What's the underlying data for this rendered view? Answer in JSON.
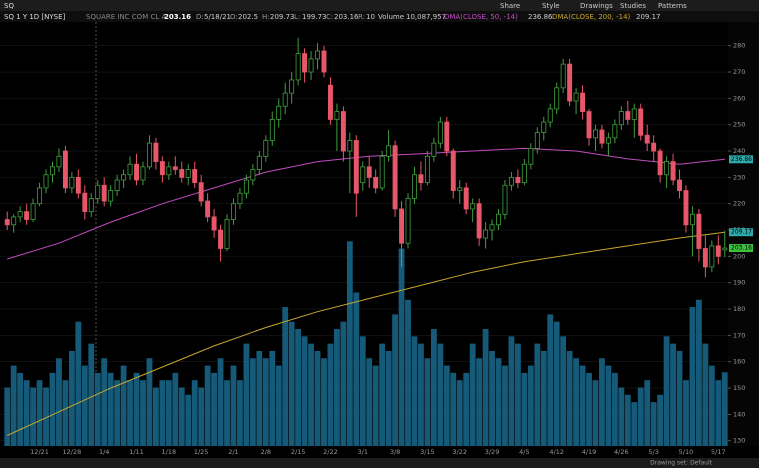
{
  "toolbar": {
    "symbol": "SQ",
    "buttons": [
      "Share",
      "Style",
      "Drawings",
      "Studies",
      "Patterns"
    ]
  },
  "header": {
    "title": "SQ 1 Y 1D [NYSE]",
    "company": "SQUARE INC COM CL A",
    "date_label": "D:",
    "date": "5/18/21",
    "ohlc_labels": [
      "O:",
      "H:",
      "L:",
      "C:"
    ],
    "range_label": "R:",
    "range": 10,
    "volume_title": "Volume",
    "volume_text": "10,087,957"
  },
  "footer": {
    "drawing_set": "Drawing set: Default"
  },
  "chart_data": {
    "type": "candlestick",
    "categories": [
      null,
      null,
      null,
      null,
      null,
      "12/21",
      null,
      null,
      null,
      null,
      "12/28",
      null,
      null,
      null,
      null,
      "1/4",
      null,
      null,
      null,
      null,
      "1/11",
      null,
      null,
      null,
      null,
      "1/18",
      null,
      null,
      null,
      null,
      "1/25",
      null,
      null,
      null,
      null,
      "2/1",
      null,
      null,
      null,
      null,
      "2/8",
      null,
      null,
      null,
      null,
      "2/15",
      null,
      null,
      null,
      null,
      "2/22",
      null,
      null,
      null,
      null,
      "3/1",
      null,
      null,
      null,
      null,
      "3/8",
      null,
      null,
      null,
      null,
      "3/15",
      null,
      null,
      null,
      null,
      "3/22",
      null,
      null,
      null,
      null,
      "3/29",
      null,
      null,
      null,
      null,
      "4/5",
      null,
      null,
      null,
      null,
      "4/12",
      null,
      null,
      null,
      null,
      "4/19",
      null,
      null,
      null,
      null,
      "4/26",
      null,
      null,
      null,
      null,
      "5/3",
      null,
      null,
      null,
      null,
      "5/10",
      null,
      null,
      null,
      null,
      "5/17",
      null
    ],
    "ohlc": [
      [
        214,
        217,
        210,
        212
      ],
      [
        212,
        216,
        209,
        215
      ],
      [
        215,
        219,
        213,
        217
      ],
      [
        217,
        220,
        212,
        214
      ],
      [
        214,
        222,
        213,
        220
      ],
      [
        220,
        228,
        219,
        226
      ],
      [
        226,
        233,
        224,
        231
      ],
      [
        231,
        236,
        228,
        234
      ],
      [
        234,
        241,
        232,
        238
      ],
      [
        240,
        242,
        224,
        226
      ],
      [
        226,
        232,
        224,
        230
      ],
      [
        230,
        233,
        222,
        224
      ],
      [
        224,
        227,
        214,
        217
      ],
      [
        217,
        224,
        215,
        222
      ],
      [
        222,
        229,
        220,
        227
      ],
      [
        227,
        230,
        219,
        221
      ],
      [
        221,
        227,
        219,
        225
      ],
      [
        225,
        231,
        223,
        229
      ],
      [
        229,
        233,
        226,
        231
      ],
      [
        231,
        238,
        229,
        235
      ],
      [
        235,
        239,
        227,
        229
      ],
      [
        229,
        236,
        227,
        234
      ],
      [
        234,
        246,
        233,
        243
      ],
      [
        243,
        245,
        233,
        236
      ],
      [
        236,
        238,
        228,
        231
      ],
      [
        231,
        236,
        229,
        234
      ],
      [
        234,
        238,
        231,
        233
      ],
      [
        233,
        236,
        228,
        230
      ],
      [
        230,
        235,
        227,
        233
      ],
      [
        233,
        236,
        226,
        228
      ],
      [
        228,
        231,
        219,
        221
      ],
      [
        221,
        224,
        213,
        215
      ],
      [
        215,
        218,
        207,
        210
      ],
      [
        210,
        212,
        198,
        203
      ],
      [
        203,
        216,
        202,
        214
      ],
      [
        214,
        222,
        212,
        220
      ],
      [
        220,
        226,
        218,
        224
      ],
      [
        224,
        231,
        222,
        229
      ],
      [
        229,
        235,
        227,
        233
      ],
      [
        233,
        240,
        231,
        238
      ],
      [
        238,
        246,
        236,
        244
      ],
      [
        244,
        255,
        242,
        252
      ],
      [
        252,
        260,
        249,
        257
      ],
      [
        257,
        266,
        254,
        262
      ],
      [
        262,
        270,
        258,
        267
      ],
      [
        267,
        283,
        265,
        277
      ],
      [
        277,
        279,
        266,
        270
      ],
      [
        270,
        278,
        267,
        275
      ],
      [
        275,
        281,
        271,
        278
      ],
      [
        278,
        280,
        268,
        270
      ],
      [
        265,
        268,
        250,
        252
      ],
      [
        252,
        258,
        240,
        255
      ],
      [
        255,
        257,
        236,
        240
      ],
      [
        240,
        247,
        224,
        244
      ],
      [
        244,
        246,
        215,
        224
      ],
      [
        228,
        236,
        225,
        234
      ],
      [
        234,
        238,
        226,
        230
      ],
      [
        230,
        233,
        224,
        226
      ],
      [
        226,
        240,
        225,
        238
      ],
      [
        238,
        248,
        236,
        242
      ],
      [
        242,
        244,
        215,
        218
      ],
      [
        218,
        221,
        196,
        205
      ],
      [
        205,
        224,
        203,
        222
      ],
      [
        222,
        234,
        220,
        231
      ],
      [
        231,
        236,
        225,
        228
      ],
      [
        228,
        240,
        227,
        238
      ],
      [
        238,
        245,
        236,
        243
      ],
      [
        243,
        253,
        241,
        251
      ],
      [
        251,
        253,
        238,
        240
      ],
      [
        240,
        241,
        222,
        225
      ],
      [
        225,
        229,
        220,
        226
      ],
      [
        226,
        228,
        216,
        218
      ],
      [
        218,
        222,
        213,
        220
      ],
      [
        220,
        222,
        204,
        207
      ],
      [
        207,
        213,
        203,
        210
      ],
      [
        210,
        214,
        206,
        212
      ],
      [
        212,
        218,
        210,
        216
      ],
      [
        216,
        229,
        214,
        227
      ],
      [
        227,
        232,
        225,
        230
      ],
      [
        230,
        233,
        226,
        228
      ],
      [
        228,
        237,
        227,
        235
      ],
      [
        235,
        243,
        233,
        241
      ],
      [
        241,
        249,
        239,
        247
      ],
      [
        247,
        253,
        244,
        251
      ],
      [
        251,
        258,
        249,
        256
      ],
      [
        256,
        266,
        254,
        264
      ],
      [
        264,
        275,
        262,
        273
      ],
      [
        273,
        275,
        257,
        259
      ],
      [
        259,
        264,
        254,
        262
      ],
      [
        262,
        265,
        252,
        255
      ],
      [
        255,
        256,
        242,
        245
      ],
      [
        245,
        250,
        240,
        248
      ],
      [
        248,
        250,
        241,
        243
      ],
      [
        243,
        247,
        238,
        245
      ],
      [
        245,
        252,
        243,
        250
      ],
      [
        250,
        257,
        248,
        255
      ],
      [
        255,
        259,
        250,
        252
      ],
      [
        252,
        258,
        245,
        256
      ],
      [
        256,
        258,
        244,
        246
      ],
      [
        246,
        250,
        240,
        243
      ],
      [
        243,
        246,
        236,
        240
      ],
      [
        240,
        241,
        228,
        231
      ],
      [
        231,
        238,
        226,
        236
      ],
      [
        236,
        239,
        227,
        229
      ],
      [
        229,
        233,
        222,
        225
      ],
      [
        225,
        227,
        209,
        212
      ],
      [
        212,
        219,
        200,
        216
      ],
      [
        216,
        218,
        198,
        203
      ],
      [
        203,
        208,
        192,
        196
      ],
      [
        196,
        206,
        194,
        204
      ],
      [
        204,
        208,
        197,
        200
      ],
      [
        202.5,
        209.73,
        199.73,
        203.16
      ]
    ],
    "volume": [
      8000000,
      11000000,
      10000000,
      9000000,
      8000000,
      9000000,
      8000000,
      10000000,
      12000000,
      9000000,
      13000000,
      17000000,
      11000000,
      14000000,
      10000000,
      12000000,
      10000000,
      9000000,
      11000000,
      9000000,
      10000000,
      9000000,
      12000000,
      8000000,
      9000000,
      9000000,
      10000000,
      8000000,
      7000000,
      9000000,
      8000000,
      11000000,
      10000000,
      12000000,
      9000000,
      11000000,
      9000000,
      14000000,
      12000000,
      13000000,
      12000000,
      13000000,
      11000000,
      19000000,
      17000000,
      16000000,
      15000000,
      14000000,
      13000000,
      12000000,
      14000000,
      16000000,
      17000000,
      28000000,
      21000000,
      15000000,
      12000000,
      11000000,
      14000000,
      13000000,
      18000000,
      27000000,
      20000000,
      15000000,
      14000000,
      12000000,
      16000000,
      14000000,
      11000000,
      10000000,
      9000000,
      10000000,
      14000000,
      12000000,
      16000000,
      13000000,
      12000000,
      11000000,
      15000000,
      14000000,
      10000000,
      11000000,
      14000000,
      13000000,
      18000000,
      17000000,
      15000000,
      13000000,
      12000000,
      11000000,
      10000000,
      9000000,
      12000000,
      11000000,
      10000000,
      8000000,
      7000000,
      6000000,
      8000000,
      9000000,
      6000000,
      7000000,
      15000000,
      14000000,
      13000000,
      9000000,
      19000000,
      20000000,
      14000000,
      11000000,
      9000000,
      10087957
    ],
    "volume_color": "#155a78",
    "volume_lim": [
      0,
      32000000
    ],
    "up_color": "#3f9f3f",
    "down_color": "#e8566a",
    "lines": [
      {
        "name": "DMA(CLOSE, 50, -14)",
        "color": "#c24cc2",
        "x": [
          0,
          8,
          16,
          24,
          32,
          40,
          48,
          56,
          64,
          72,
          80,
          88,
          96,
          104,
          111
        ],
        "values": [
          199,
          205,
          213,
          220,
          226,
          232,
          236,
          238,
          239,
          240,
          241,
          240,
          237,
          235,
          236.86
        ]
      },
      {
        "name": "DMA(CLOSE, 200, -14)",
        "color": "#c8a62e",
        "x": [
          0,
          8,
          16,
          24,
          32,
          40,
          48,
          56,
          64,
          72,
          80,
          88,
          96,
          104,
          111
        ],
        "values": [
          132,
          141,
          150,
          158,
          166,
          173,
          179,
          184,
          189,
          194,
          198,
          201,
          204,
          207,
          209.17
        ]
      }
    ],
    "ylim": [
      128,
      289
    ],
    "yticks": [
      130,
      140,
      150,
      160,
      170,
      180,
      190,
      200,
      210,
      220,
      230,
      240,
      250,
      260,
      270,
      280
    ],
    "grid": true
  }
}
